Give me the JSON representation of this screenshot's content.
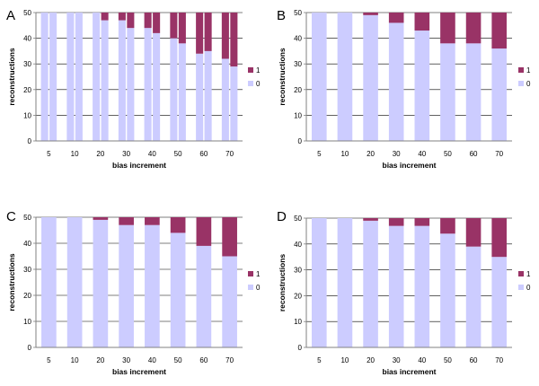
{
  "colors": {
    "zero": "#ccccff",
    "one": "#993366",
    "grid": "#000000",
    "axis": "#808080",
    "plot_bg": "#ffffff"
  },
  "chart_data": [
    {
      "panel": "A",
      "type": "bar",
      "stacked": true,
      "grouped": true,
      "xlabel": "bias increment",
      "ylabel": "reconstructions",
      "ylim": [
        0,
        50
      ],
      "yticks": [
        0,
        10,
        20,
        30,
        40,
        50
      ],
      "grid": true,
      "legend": [
        "1",
        "0"
      ],
      "legend_position": "right",
      "categories": [
        "5",
        "10",
        "20",
        "30",
        "40",
        "50",
        "60",
        "70"
      ],
      "series": [
        {
          "name": "0",
          "values": [
            [
              50,
              50
            ],
            [
              50,
              50
            ],
            [
              50,
              47
            ],
            [
              47,
              44
            ],
            [
              44,
              42
            ],
            [
              40,
              38
            ],
            [
              34,
              35
            ],
            [
              32,
              29
            ]
          ]
        },
        {
          "name": "1",
          "values": [
            [
              0,
              0
            ],
            [
              0,
              0
            ],
            [
              0,
              3
            ],
            [
              3,
              6
            ],
            [
              6,
              8
            ],
            [
              10,
              12
            ],
            [
              16,
              15
            ],
            [
              18,
              21
            ]
          ]
        }
      ]
    },
    {
      "panel": "B",
      "type": "bar",
      "stacked": true,
      "xlabel": "bias increment",
      "ylabel": "reconstructions",
      "ylim": [
        0,
        50
      ],
      "yticks": [
        0,
        10,
        20,
        30,
        40,
        50
      ],
      "grid": true,
      "legend": [
        "1",
        "0"
      ],
      "legend_position": "right",
      "categories": [
        "5",
        "10",
        "20",
        "30",
        "40",
        "50",
        "60",
        "70"
      ],
      "series": [
        {
          "name": "0",
          "values": [
            50,
            50,
            49,
            46,
            43,
            38,
            38,
            36
          ]
        },
        {
          "name": "1",
          "values": [
            0,
            0,
            1,
            4,
            7,
            12,
            12,
            14
          ]
        }
      ]
    },
    {
      "panel": "C",
      "type": "bar",
      "stacked": true,
      "xlabel": "bias increment",
      "ylabel": "reconstructions",
      "ylim": [
        0,
        50
      ],
      "yticks": [
        0,
        10,
        20,
        30,
        40,
        50
      ],
      "grid": true,
      "legend": [
        "1",
        "0"
      ],
      "legend_position": "right",
      "categories": [
        "5",
        "10",
        "20",
        "30",
        "40",
        "50",
        "60",
        "70"
      ],
      "series": [
        {
          "name": "0",
          "values": [
            50,
            50,
            49,
            47,
            47,
            44,
            39,
            35
          ]
        },
        {
          "name": "1",
          "values": [
            0,
            0,
            1,
            3,
            3,
            6,
            11,
            15
          ]
        }
      ]
    },
    {
      "panel": "D",
      "type": "bar",
      "stacked": true,
      "xlabel": "bias increment",
      "ylabel": "reconstructions",
      "ylim": [
        0,
        50
      ],
      "yticks": [
        0,
        10,
        20,
        30,
        40,
        50
      ],
      "grid": true,
      "legend": [
        "1",
        "0"
      ],
      "legend_position": "right",
      "categories": [
        "5",
        "10",
        "20",
        "30",
        "40",
        "50",
        "60",
        "70"
      ],
      "series": [
        {
          "name": "0",
          "values": [
            50,
            50,
            49,
            47,
            47,
            44,
            39,
            35
          ]
        },
        {
          "name": "1",
          "values": [
            0,
            0,
            1,
            3,
            3,
            6,
            11,
            15
          ]
        }
      ]
    }
  ]
}
